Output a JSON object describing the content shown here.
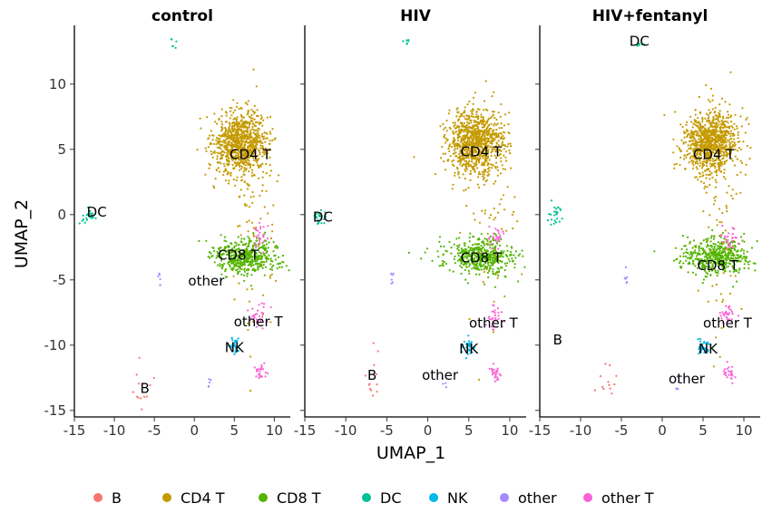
{
  "chart_data": {
    "type": "scatter",
    "xlabel": "UMAP_1",
    "ylabel": "UMAP_2",
    "xlim": [
      -15,
      12
    ],
    "ylim": [
      -15.5,
      14.5
    ],
    "x_ticks": [
      -15,
      -10,
      -5,
      0,
      5,
      10
    ],
    "y_ticks": [
      -15,
      -10,
      -5,
      0,
      5,
      10
    ],
    "x_tick_labels": [
      "-15",
      "-10",
      "-5",
      "0",
      "5",
      "10"
    ],
    "y_tick_labels": [
      "-15",
      "-10",
      "-5",
      "0",
      "5",
      "10"
    ],
    "legend_position": "bottom",
    "cell_types": [
      {
        "name": "B",
        "color": "#F8766D"
      },
      {
        "name": "CD4 T",
        "color": "#C49A00"
      },
      {
        "name": "CD8 T",
        "color": "#53B400"
      },
      {
        "name": "DC",
        "color": "#00C094"
      },
      {
        "name": "NK",
        "color": "#00B6EB"
      },
      {
        "name": "other",
        "color": "#A58AFF"
      },
      {
        "name": "other T",
        "color": "#FB61D7"
      }
    ],
    "clusters": [
      {
        "name": "CD4 T",
        "cx": 5.8,
        "cy": 5.5,
        "sx": 1.7,
        "sy": 1.2,
        "n": 900
      },
      {
        "name": "CD4 T",
        "cx": 7.5,
        "cy": 0,
        "sx": 1.6,
        "sy": 4.5,
        "n": 90
      },
      {
        "name": "CD8 T",
        "cx": 6.5,
        "cy": -3.2,
        "sx": 2.2,
        "sy": 0.7,
        "n": 450
      },
      {
        "name": "DC",
        "cx": -13.1,
        "cy": -0.2,
        "sx": 0.4,
        "sy": 0.4,
        "n": 25
      },
      {
        "name": "DC",
        "cx": -2.5,
        "cy": 13.1,
        "sx": 0.2,
        "sy": 0.2,
        "n": 6
      },
      {
        "name": "NK",
        "cx": 5.0,
        "cy": -10.0,
        "sx": 0.4,
        "sy": 0.4,
        "n": 30
      },
      {
        "name": "other",
        "cx": -4.3,
        "cy": -4.8,
        "sx": 0.2,
        "sy": 0.3,
        "n": 6
      },
      {
        "name": "other",
        "cx": 1.8,
        "cy": -13.0,
        "sx": 0.2,
        "sy": 0.3,
        "n": 5
      },
      {
        "name": "other T",
        "cx": 8.0,
        "cy": -7.8,
        "sx": 0.5,
        "sy": 0.5,
        "n": 30
      },
      {
        "name": "other T",
        "cx": 8.2,
        "cy": -12.1,
        "sx": 0.4,
        "sy": 0.3,
        "n": 25
      },
      {
        "name": "other T",
        "cx": 8.3,
        "cy": -1.8,
        "sx": 0.5,
        "sy": 0.5,
        "n": 25
      },
      {
        "name": "B",
        "cx": -6.8,
        "cy": -12.5,
        "sx": 0.7,
        "sy": 1.2,
        "n": 12
      }
    ],
    "panels": [
      {
        "title": "control",
        "labels": [
          {
            "text": "CD4 T",
            "x": 7.0,
            "y": 4.6
          },
          {
            "text": "CD8 T",
            "x": 5.5,
            "y": -3.1
          },
          {
            "text": "DC",
            "x": -12.2,
            "y": 0.2
          },
          {
            "text": "other",
            "x": 1.5,
            "y": -5.1
          },
          {
            "text": "other T",
            "x": 8.0,
            "y": -8.2
          },
          {
            "text": "NK",
            "x": 5.0,
            "y": -10.2
          },
          {
            "text": "B",
            "x": -6.2,
            "y": -13.3
          }
        ]
      },
      {
        "title": "HIV",
        "labels": [
          {
            "text": "CD4 T",
            "x": 6.5,
            "y": 4.8
          },
          {
            "text": "CD8 T",
            "x": 6.5,
            "y": -3.3
          },
          {
            "text": "DC",
            "x": -12.8,
            "y": -0.2
          },
          {
            "text": "other T",
            "x": 8.0,
            "y": -8.3
          },
          {
            "text": "NK",
            "x": 5.0,
            "y": -10.3
          },
          {
            "text": "B",
            "x": -6.8,
            "y": -12.3
          },
          {
            "text": "other",
            "x": 1.5,
            "y": -12.3
          }
        ]
      },
      {
        "title": "HIV+fentanyl",
        "labels": [
          {
            "text": "DC",
            "x": -2.8,
            "y": 13.3
          },
          {
            "text": "CD4 T",
            "x": 6.3,
            "y": 4.6
          },
          {
            "text": "CD8 T",
            "x": 6.8,
            "y": -3.9
          },
          {
            "text": "other T",
            "x": 8.0,
            "y": -8.3
          },
          {
            "text": "NK",
            "x": 5.6,
            "y": -10.3
          },
          {
            "text": "B",
            "x": -12.8,
            "y": -9.6
          },
          {
            "text": "other",
            "x": 3.0,
            "y": -12.6
          }
        ]
      }
    ]
  }
}
